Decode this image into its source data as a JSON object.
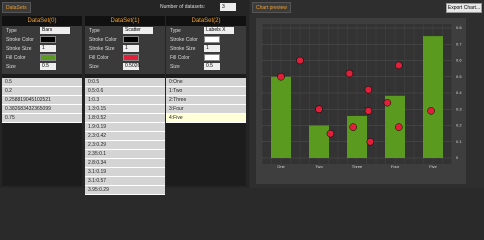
{
  "left_panel": {
    "tab": "DataSets",
    "count_label": "Number of datasets:",
    "count": 3,
    "property_labels": [
      "Type",
      "Stroke Color",
      "Stroke Size",
      "Fill Color",
      "Size"
    ],
    "datasets": [
      {
        "title": "DataSet(0)",
        "type": "Bars",
        "stroke_color": "#000000",
        "stroke_size": 1,
        "fill_color": "#5a9a1e",
        "size": 0.5,
        "rows": [
          0.5,
          0.2,
          0.258819045102521,
          0.382683432365099,
          0.75
        ]
      },
      {
        "title": "DataSet(1)",
        "type": "Scatter",
        "stroke_color": "#000000",
        "stroke_size": 1,
        "fill_color": "#e0203a",
        "size": 0.5026,
        "rows": [
          "0:0.5",
          "0.5:0.6",
          "1:0.3",
          "1.3:0.15",
          "1.8:0.52",
          "1.9:0.19",
          "2.3:0.42",
          "2.3:0.29",
          "2.35:0.1",
          "2.8:0.34",
          "3.1:0.19",
          "3.1:0.57",
          "3.95:0.29"
        ]
      },
      {
        "title": "DataSet(2)",
        "type": "Labels X",
        "stroke_color": "#ffffff",
        "stroke_size": 1,
        "fill_color": "#ffffff",
        "size": 0.5,
        "rows": [
          "0:One",
          "1:Two",
          "2:Three",
          "3:Four",
          "4:Five"
        ]
      }
    ]
  },
  "right_panel": {
    "tab": "Chart preview",
    "button": "Export Chart..."
  },
  "chart_data": {
    "type": "bar_scatter",
    "categories": [
      "One",
      "Two",
      "Three",
      "Four",
      "Five"
    ],
    "bar_color": "#5a9a1e",
    "point_color": "#e0203a",
    "points": [
      {
        "x": 0,
        "y": 0.5
      },
      {
        "x": 0.5,
        "y": 0.6
      },
      {
        "x": 1,
        "y": 0.3
      },
      {
        "x": 1.3,
        "y": 0.15
      },
      {
        "x": 1.8,
        "y": 0.52
      },
      {
        "x": 1.9,
        "y": 0.19
      },
      {
        "x": 2.3,
        "y": 0.42
      },
      {
        "x": 2.3,
        "y": 0.29
      },
      {
        "x": 2.35,
        "y": 0.1
      },
      {
        "x": 2.8,
        "y": 0.34
      },
      {
        "x": 3.1,
        "y": 0.19
      },
      {
        "x": 3.1,
        "y": 0.57
      },
      {
        "x": 3.95,
        "y": 0.29
      }
    ],
    "xlim": [
      -0.5,
      4.5
    ],
    "ylim": [
      0,
      0.8
    ],
    "yticks": [
      0,
      0.1,
      0.2,
      0.3,
      0.4,
      0.5,
      0.6,
      0.7,
      0.8
    ],
    "grid": true
  }
}
